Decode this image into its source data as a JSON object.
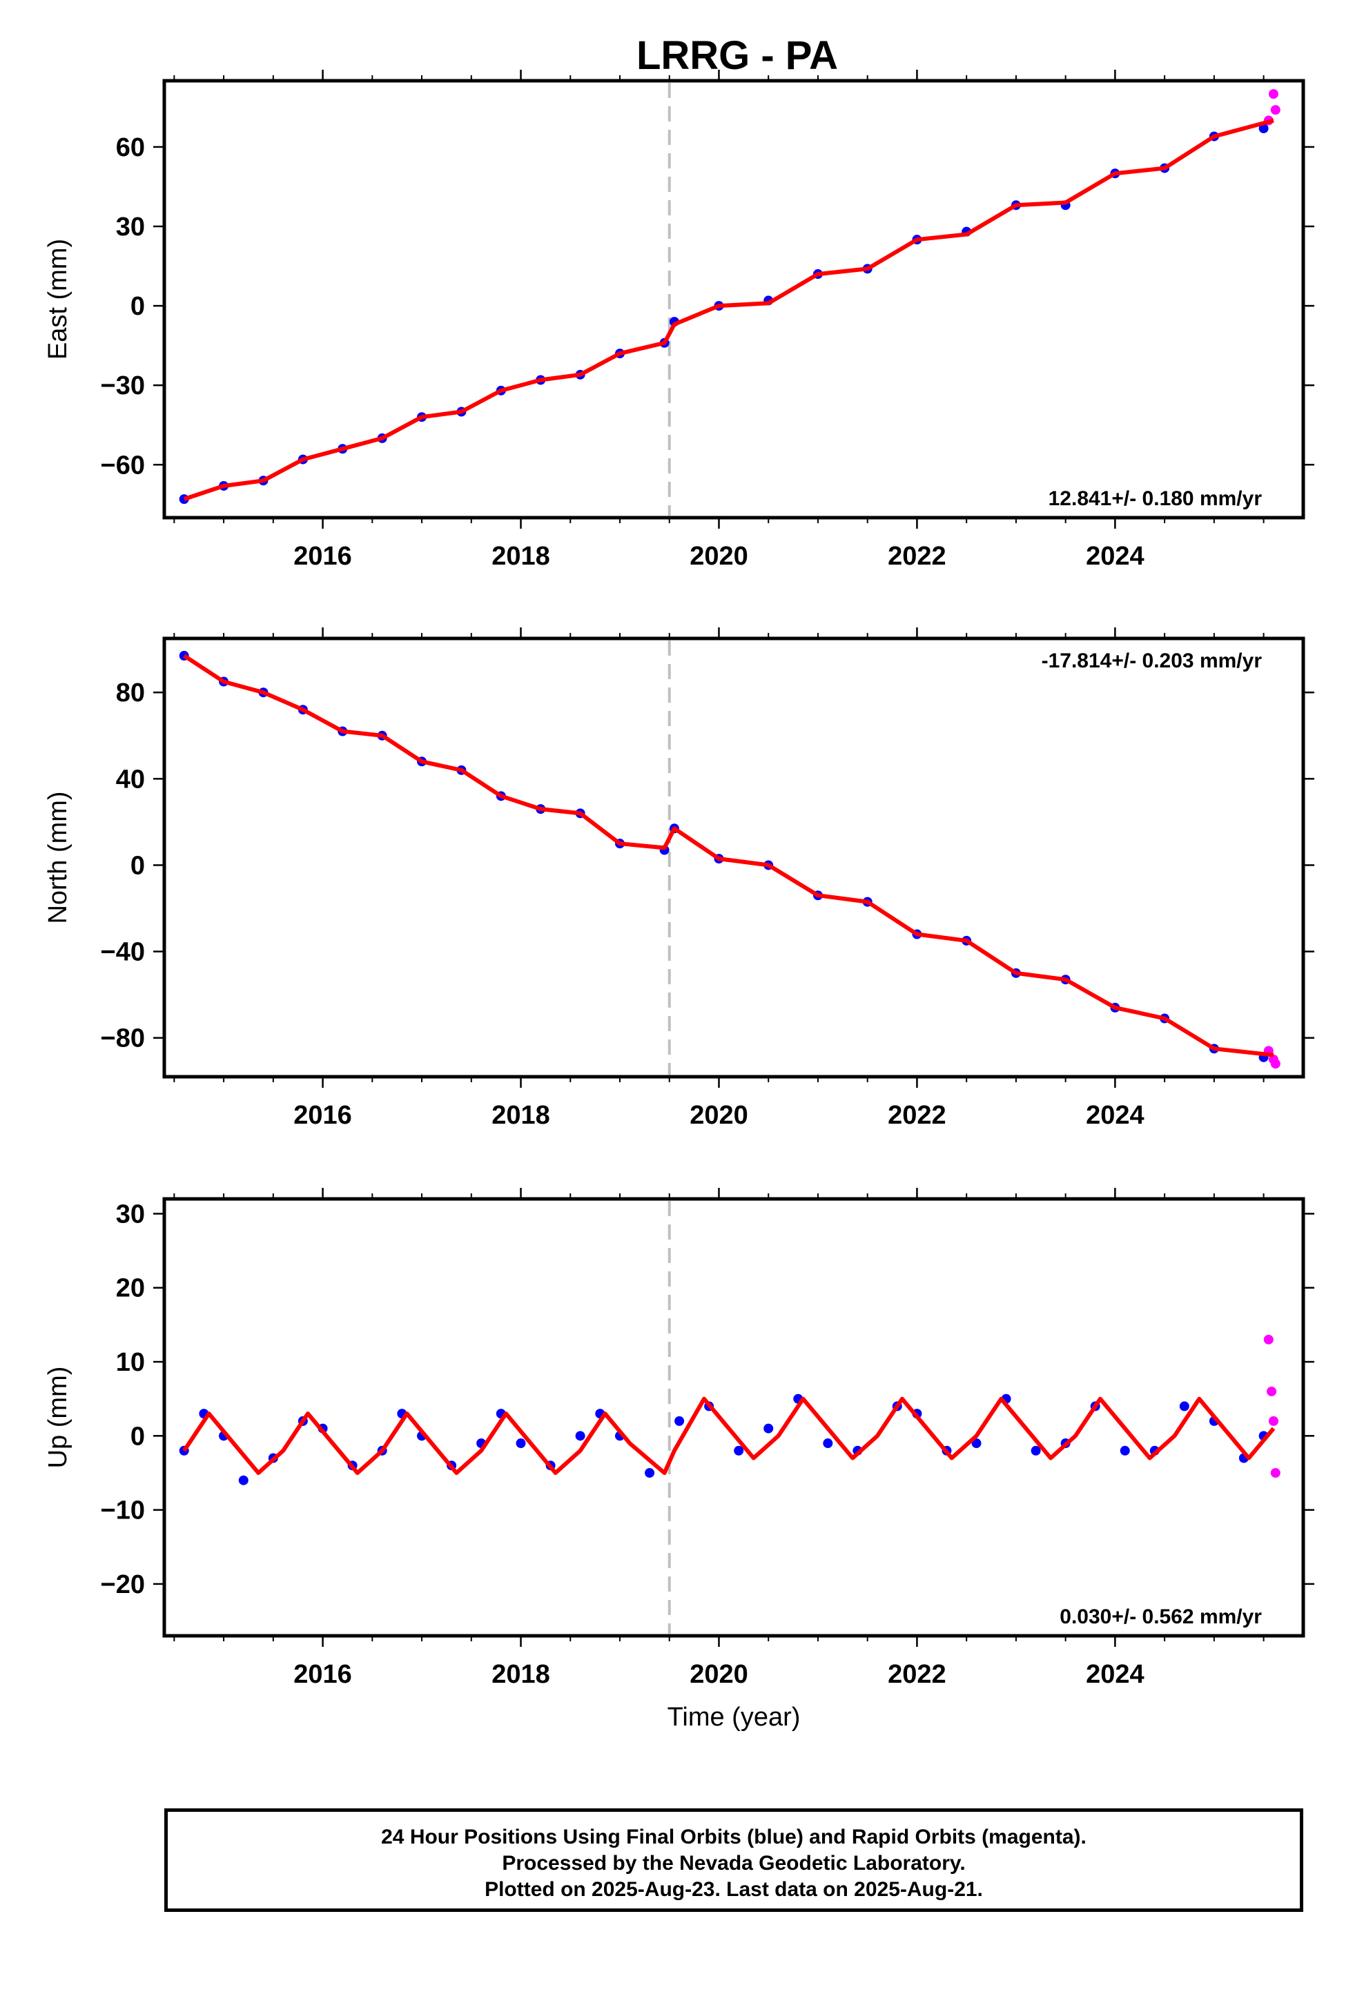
{
  "title": "LRRG - PA",
  "footer": {
    "line1": "24 Hour Positions Using Final Orbits (blue) and Rapid Orbits (magenta).",
    "line2": "Processed by the Nevada Geodetic Laboratory.",
    "line3": "Plotted on 2025-Aug-23. Last data on 2025-Aug-21."
  },
  "colors": {
    "final": "#0000ff",
    "rapid": "#ff00ff",
    "model": "#ff0000",
    "break": "#c0c0c0"
  },
  "chart_data": [
    {
      "type": "scatter",
      "ylabel": "East (mm)",
      "xlabel": "",
      "xlim": [
        2014.4,
        2025.9
      ],
      "ylim": [
        -80,
        85
      ],
      "xticks": [
        2016,
        2018,
        2020,
        2022,
        2024
      ],
      "yticks": [
        -60,
        -30,
        0,
        30,
        60
      ],
      "rate_label": "12.841+/- 0.180 mm/yr",
      "rate_position": "bottom-right",
      "break_epoch": 2019.5,
      "series": [
        {
          "role": "final",
          "x": [
            2014.6,
            2015.0,
            2015.4,
            2015.8,
            2016.2,
            2016.6,
            2017.0,
            2017.4,
            2017.8,
            2018.2,
            2018.6,
            2019.0,
            2019.45,
            2019.55,
            2020.0,
            2020.5,
            2021.0,
            2021.5,
            2022.0,
            2022.5,
            2023.0,
            2023.5,
            2024.0,
            2024.5,
            2025.0,
            2025.5
          ],
          "y": [
            -73,
            -68,
            -66,
            -58,
            -54,
            -50,
            -42,
            -40,
            -32,
            -28,
            -26,
            -18,
            -14,
            -6,
            0,
            2,
            12,
            14,
            25,
            28,
            38,
            38,
            50,
            52,
            64,
            67
          ]
        },
        {
          "role": "rapid",
          "x": [
            2025.55,
            2025.6,
            2025.62
          ],
          "y": [
            70,
            80,
            74
          ]
        },
        {
          "role": "model",
          "x": [
            2014.6,
            2015.0,
            2015.4,
            2015.8,
            2016.2,
            2016.6,
            2017.0,
            2017.4,
            2017.8,
            2018.2,
            2018.6,
            2019.0,
            2019.45,
            2019.55,
            2020.0,
            2020.5,
            2021.0,
            2021.5,
            2022.0,
            2022.5,
            2023.0,
            2023.5,
            2024.0,
            2024.5,
            2025.0,
            2025.6
          ],
          "y": [
            -73,
            -68,
            -66,
            -58,
            -54,
            -50,
            -42,
            -40,
            -32,
            -28,
            -26,
            -18,
            -14,
            -7,
            0,
            1,
            12,
            14,
            25,
            27,
            38,
            39,
            50,
            52,
            64,
            70
          ]
        }
      ]
    },
    {
      "type": "scatter",
      "ylabel": "North (mm)",
      "xlabel": "",
      "xlim": [
        2014.4,
        2025.9
      ],
      "ylim": [
        -98,
        105
      ],
      "xticks": [
        2016,
        2018,
        2020,
        2022,
        2024
      ],
      "yticks": [
        -80,
        -40,
        0,
        40,
        80
      ],
      "rate_label": "-17.814+/- 0.203 mm/yr",
      "rate_position": "top-right",
      "break_epoch": 2019.5,
      "series": [
        {
          "role": "final",
          "x": [
            2014.6,
            2015.0,
            2015.4,
            2015.8,
            2016.2,
            2016.6,
            2017.0,
            2017.4,
            2017.8,
            2018.2,
            2018.6,
            2019.0,
            2019.45,
            2019.55,
            2020.0,
            2020.5,
            2021.0,
            2021.5,
            2022.0,
            2022.5,
            2023.0,
            2023.5,
            2024.0,
            2024.5,
            2025.0,
            2025.5
          ],
          "y": [
            97,
            85,
            80,
            72,
            62,
            60,
            48,
            44,
            32,
            26,
            24,
            10,
            7,
            17,
            3,
            0,
            -14,
            -17,
            -32,
            -35,
            -50,
            -53,
            -66,
            -71,
            -85,
            -89
          ]
        },
        {
          "role": "rapid",
          "x": [
            2025.55,
            2025.6,
            2025.62
          ],
          "y": [
            -86,
            -90,
            -92
          ]
        },
        {
          "role": "model",
          "x": [
            2014.6,
            2015.0,
            2015.4,
            2015.8,
            2016.2,
            2016.6,
            2017.0,
            2017.4,
            2017.8,
            2018.2,
            2018.6,
            2019.0,
            2019.45,
            2019.55,
            2020.0,
            2020.5,
            2021.0,
            2021.5,
            2022.0,
            2022.5,
            2023.0,
            2023.5,
            2024.0,
            2024.5,
            2025.0,
            2025.6
          ],
          "y": [
            97,
            85,
            80,
            72,
            62,
            60,
            48,
            44,
            32,
            26,
            24,
            10,
            8,
            17,
            3,
            0,
            -14,
            -17,
            -32,
            -35,
            -50,
            -53,
            -66,
            -71,
            -85,
            -88
          ]
        }
      ]
    },
    {
      "type": "scatter",
      "ylabel": "Up (mm)",
      "xlabel": "Time (year)",
      "xlim": [
        2014.4,
        2025.9
      ],
      "ylim": [
        -27,
        32
      ],
      "xticks": [
        2016,
        2018,
        2020,
        2022,
        2024
      ],
      "yticks": [
        -20,
        -10,
        0,
        10,
        20,
        30
      ],
      "rate_label": "0.030+/- 0.562 mm/yr",
      "rate_position": "bottom-right",
      "break_epoch": 2019.5,
      "series": [
        {
          "role": "final",
          "x": [
            2014.6,
            2014.8,
            2015.0,
            2015.2,
            2015.5,
            2015.8,
            2016.0,
            2016.3,
            2016.6,
            2016.8,
            2017.0,
            2017.3,
            2017.6,
            2017.8,
            2018.0,
            2018.3,
            2018.6,
            2018.8,
            2019.0,
            2019.3,
            2019.6,
            2019.9,
            2020.2,
            2020.5,
            2020.8,
            2021.1,
            2021.4,
            2021.8,
            2022.0,
            2022.3,
            2022.6,
            2022.9,
            2023.2,
            2023.5,
            2023.8,
            2024.1,
            2024.4,
            2024.7,
            2025.0,
            2025.3,
            2025.5
          ],
          "y": [
            -2,
            3,
            0,
            -6,
            -3,
            2,
            1,
            -4,
            -2,
            3,
            0,
            -4,
            -1,
            3,
            -1,
            -4,
            0,
            3,
            0,
            -5,
            2,
            4,
            -2,
            1,
            5,
            -1,
            -2,
            4,
            3,
            -2,
            -1,
            5,
            -2,
            -1,
            4,
            -2,
            -2,
            4,
            2,
            -3,
            0
          ]
        },
        {
          "role": "rapid",
          "x": [
            2025.55,
            2025.58,
            2025.6,
            2025.62
          ],
          "y": [
            13,
            6,
            2,
            -5
          ]
        },
        {
          "role": "model",
          "x": [
            2014.6,
            2014.85,
            2015.1,
            2015.35,
            2015.6,
            2015.85,
            2016.1,
            2016.35,
            2016.6,
            2016.85,
            2017.1,
            2017.35,
            2017.6,
            2017.85,
            2018.1,
            2018.35,
            2018.6,
            2018.85,
            2019.1,
            2019.45,
            2019.55,
            2019.85,
            2020.1,
            2020.35,
            2020.6,
            2020.85,
            2021.1,
            2021.35,
            2021.6,
            2021.85,
            2022.1,
            2022.35,
            2022.6,
            2022.85,
            2023.1,
            2023.35,
            2023.6,
            2023.85,
            2024.1,
            2024.35,
            2024.6,
            2024.85,
            2025.1,
            2025.35,
            2025.6
          ],
          "y": [
            -2,
            3,
            -1,
            -5,
            -2,
            3,
            -1,
            -5,
            -2,
            3,
            -1,
            -5,
            -2,
            3,
            -1,
            -5,
            -2,
            3,
            -1,
            -5,
            -2,
            5,
            1,
            -3,
            0,
            5,
            1,
            -3,
            0,
            5,
            1,
            -3,
            0,
            5,
            1,
            -3,
            0,
            5,
            1,
            -3,
            0,
            5,
            1,
            -3,
            1
          ]
        }
      ]
    }
  ]
}
